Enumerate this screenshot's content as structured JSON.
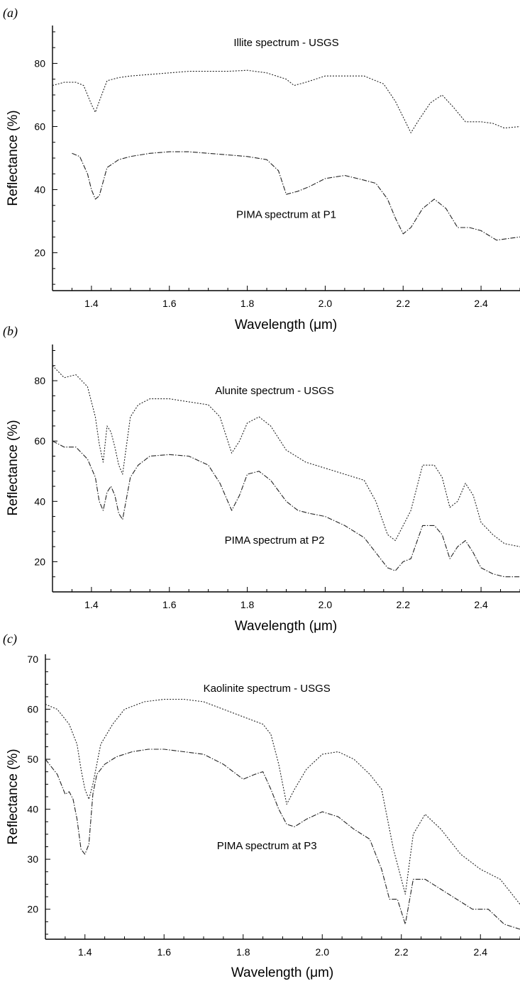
{
  "chart_data": [
    {
      "type": "line",
      "panel_label": "(a)",
      "xlabel": "Wavelength (μm)",
      "ylabel": "Reflectance (%)",
      "xlim": [
        1.3,
        2.5
      ],
      "ylim": [
        8,
        92
      ],
      "xticks": [
        1.4,
        1.6,
        1.8,
        2.0,
        2.2,
        2.4
      ],
      "xtick_labels": [
        "1.4",
        "1.6",
        "1.8",
        "2.0",
        "2.2",
        "2.4"
      ],
      "yticks": [
        20,
        40,
        60,
        80
      ],
      "ytick_labels": [
        "20",
        "40",
        "60",
        "80"
      ],
      "grid": false,
      "annotations": [
        {
          "text": "Illite spectrum - USGS",
          "x": 1.9,
          "y": 85.5
        },
        {
          "text": "PIMA spectrum at P1",
          "x": 1.9,
          "y": 31
        }
      ],
      "series": [
        {
          "line_style": "dotted",
          "x": [
            1.3,
            1.33,
            1.36,
            1.38,
            1.4,
            1.41,
            1.42,
            1.44,
            1.47,
            1.5,
            1.55,
            1.6,
            1.65,
            1.7,
            1.75,
            1.8,
            1.85,
            1.9,
            1.92,
            1.95,
            2.0,
            2.05,
            2.1,
            2.15,
            2.18,
            2.2,
            2.22,
            2.24,
            2.27,
            2.3,
            2.33,
            2.36,
            2.4,
            2.43,
            2.46,
            2.5
          ],
          "y": [
            73,
            74,
            74,
            73,
            67,
            64.5,
            68,
            74.5,
            75.5,
            76,
            76.5,
            77,
            77.5,
            77.5,
            77.5,
            77.8,
            77,
            75,
            73,
            74,
            76,
            76,
            76,
            73.5,
            68,
            63,
            58,
            62,
            67.5,
            70,
            66,
            61.5,
            61.5,
            61,
            59.5,
            60
          ]
        },
        {
          "line_style": "dash-dot",
          "x": [
            1.35,
            1.37,
            1.39,
            1.4,
            1.41,
            1.42,
            1.44,
            1.47,
            1.5,
            1.55,
            1.6,
            1.65,
            1.7,
            1.75,
            1.8,
            1.85,
            1.88,
            1.9,
            1.93,
            1.96,
            2.0,
            2.05,
            2.1,
            2.13,
            2.16,
            2.18,
            2.2,
            2.22,
            2.25,
            2.28,
            2.31,
            2.34,
            2.37,
            2.4,
            2.44,
            2.47,
            2.5
          ],
          "y": [
            51.5,
            50.5,
            45,
            40,
            37,
            38,
            47,
            49.5,
            50.5,
            51.5,
            52,
            52,
            51.5,
            51,
            50.5,
            49.5,
            46,
            38.5,
            39.5,
            41,
            43.5,
            44.5,
            43,
            42,
            37,
            31,
            26,
            28,
            34,
            37,
            34,
            28,
            28,
            27,
            24,
            24.5,
            25
          ]
        }
      ]
    },
    {
      "type": "line",
      "panel_label": "(b)",
      "xlabel": "Wavelength (μm)",
      "ylabel": "Reflectance (%)",
      "xlim": [
        1.3,
        2.5
      ],
      "ylim": [
        10,
        92
      ],
      "xticks": [
        1.4,
        1.6,
        1.8,
        2.0,
        2.2,
        2.4
      ],
      "xtick_labels": [
        "1.4",
        "1.6",
        "1.8",
        "2.0",
        "2.2",
        "2.4"
      ],
      "yticks": [
        20,
        40,
        60,
        80
      ],
      "ytick_labels": [
        "20",
        "40",
        "60",
        "80"
      ],
      "grid": false,
      "annotations": [
        {
          "text": "Alunite spectrum - USGS",
          "x": 1.87,
          "y": 75.5
        },
        {
          "text": "PIMA spectrum at P2",
          "x": 1.87,
          "y": 26
        }
      ],
      "series": [
        {
          "line_style": "dotted",
          "x": [
            1.3,
            1.33,
            1.36,
            1.39,
            1.41,
            1.42,
            1.43,
            1.44,
            1.45,
            1.46,
            1.47,
            1.48,
            1.5,
            1.52,
            1.55,
            1.6,
            1.65,
            1.7,
            1.73,
            1.76,
            1.78,
            1.8,
            1.83,
            1.86,
            1.9,
            1.95,
            2.0,
            2.05,
            2.1,
            2.13,
            2.16,
            2.18,
            2.2,
            2.22,
            2.25,
            2.28,
            2.3,
            2.32,
            2.34,
            2.36,
            2.38,
            2.4,
            2.43,
            2.46,
            2.5
          ],
          "y": [
            85,
            81,
            82,
            78,
            68,
            59,
            53,
            65,
            63,
            58,
            52,
            49,
            68,
            72,
            74,
            74,
            73,
            72,
            68,
            56,
            60,
            66,
            68,
            65,
            57,
            53,
            51,
            49,
            47,
            40,
            29,
            27,
            32,
            37,
            52,
            52,
            48,
            38,
            40,
            46,
            42,
            33,
            29,
            26,
            25
          ]
        },
        {
          "line_style": "dash-dot",
          "x": [
            1.3,
            1.33,
            1.36,
            1.39,
            1.41,
            1.42,
            1.43,
            1.44,
            1.45,
            1.46,
            1.47,
            1.48,
            1.5,
            1.52,
            1.55,
            1.6,
            1.65,
            1.7,
            1.73,
            1.76,
            1.78,
            1.8,
            1.83,
            1.86,
            1.9,
            1.93,
            1.96,
            2.0,
            2.05,
            2.1,
            2.13,
            2.16,
            2.18,
            2.2,
            2.22,
            2.25,
            2.28,
            2.3,
            2.32,
            2.34,
            2.36,
            2.38,
            2.4,
            2.43,
            2.46,
            2.5
          ],
          "y": [
            60,
            58,
            58,
            54,
            48,
            40,
            37,
            43,
            45,
            42,
            36,
            34,
            48,
            52,
            55,
            55.5,
            55,
            52,
            46,
            37,
            42,
            49,
            50,
            47,
            40,
            37,
            36,
            35,
            32,
            28,
            23,
            18,
            17,
            20,
            21,
            32,
            32,
            29,
            21,
            25,
            27,
            23,
            18,
            16,
            15,
            15
          ]
        }
      ]
    },
    {
      "type": "line",
      "panel_label": "(c)",
      "xlabel": "Wavelength (μm)",
      "ylabel": "Reflectance (%)",
      "xlim": [
        1.3,
        2.5
      ],
      "ylim": [
        14,
        71
      ],
      "xticks": [
        1.4,
        1.6,
        1.8,
        2.0,
        2.2,
        2.4
      ],
      "xtick_labels": [
        "1.4",
        "1.6",
        "1.8",
        "2.0",
        "2.2",
        "2.4"
      ],
      "yticks": [
        20,
        30,
        40,
        50,
        60,
        70
      ],
      "ytick_labels": [
        "20",
        "30",
        "40",
        "50",
        "60",
        "70"
      ],
      "grid": false,
      "annotations": [
        {
          "text": "Kaolinite spectrum - USGS",
          "x": 1.86,
          "y": 63.5
        },
        {
          "text": "PIMA spectrum at P3",
          "x": 1.86,
          "y": 32
        }
      ],
      "series": [
        {
          "line_style": "dotted",
          "x": [
            1.3,
            1.33,
            1.36,
            1.38,
            1.39,
            1.4,
            1.41,
            1.42,
            1.44,
            1.47,
            1.5,
            1.55,
            1.6,
            1.65,
            1.7,
            1.75,
            1.8,
            1.85,
            1.87,
            1.89,
            1.91,
            1.93,
            1.96,
            2.0,
            2.04,
            2.08,
            2.12,
            2.15,
            2.18,
            2.2,
            2.21,
            2.23,
            2.26,
            2.3,
            2.35,
            2.4,
            2.45,
            2.5
          ],
          "y": [
            61,
            60,
            57,
            53,
            48,
            44,
            42,
            45,
            53,
            57,
            60,
            61.5,
            62,
            62,
            61.5,
            60,
            58.5,
            57,
            55,
            49,
            41,
            44,
            48,
            51,
            51.5,
            50,
            47,
            44,
            32,
            26,
            23,
            35,
            39,
            36,
            31,
            28,
            26,
            21
          ]
        },
        {
          "line_style": "dash-dot",
          "x": [
            1.3,
            1.33,
            1.35,
            1.36,
            1.37,
            1.38,
            1.39,
            1.4,
            1.41,
            1.42,
            1.43,
            1.45,
            1.48,
            1.52,
            1.56,
            1.6,
            1.65,
            1.7,
            1.75,
            1.8,
            1.83,
            1.85,
            1.87,
            1.89,
            1.91,
            1.93,
            1.96,
            2.0,
            2.04,
            2.08,
            2.12,
            2.15,
            2.17,
            2.19,
            2.21,
            2.23,
            2.26,
            2.3,
            2.34,
            2.38,
            2.42,
            2.46,
            2.5
          ],
          "y": [
            50,
            47,
            43,
            43.5,
            42,
            38,
            32,
            31,
            33,
            43,
            47,
            49,
            50.5,
            51.5,
            52,
            52,
            51.5,
            51,
            49,
            46,
            47,
            47.5,
            44,
            40,
            37,
            36.5,
            38,
            39.5,
            38.5,
            36,
            34,
            28,
            22,
            22,
            17,
            26,
            26,
            24,
            22,
            20,
            20,
            17,
            16
          ]
        }
      ]
    }
  ]
}
